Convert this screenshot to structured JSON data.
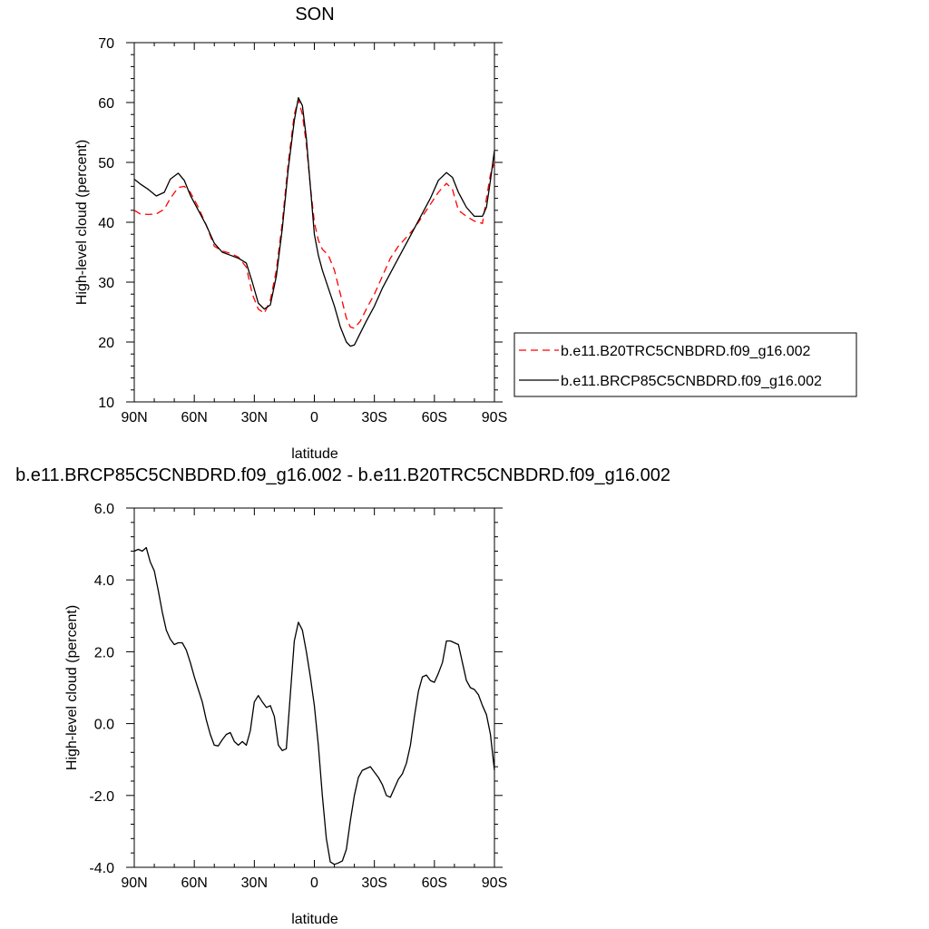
{
  "chart_data": [
    {
      "type": "line",
      "title": "SON",
      "xlabel": "latitude",
      "ylabel": "High-level cloud (percent)",
      "xlim": [
        90,
        -90
      ],
      "ylim": [
        10,
        70
      ],
      "x_ticks": [
        90,
        60,
        30,
        0,
        -30,
        -60,
        -90
      ],
      "x_tick_labels": [
        "90N",
        "60N",
        "30N",
        "0",
        "30S",
        "60S",
        "90S"
      ],
      "y_ticks": [
        10,
        20,
        30,
        40,
        50,
        60,
        70
      ],
      "y_tick_labels": [
        "10",
        "20",
        "30",
        "40",
        "50",
        "60",
        "70"
      ],
      "legend": {
        "position": "right"
      },
      "series": [
        {
          "name": "b.e11.B20TRC5CNBDRD.f09_g16.002",
          "color": "#ff0000",
          "dash": "dashed",
          "x": [
            90,
            87,
            83,
            79,
            75,
            72,
            68,
            65,
            62,
            58,
            54,
            50,
            46,
            42,
            38,
            34,
            31,
            28,
            25,
            22,
            19,
            16,
            13,
            10,
            8,
            6,
            4,
            2,
            0,
            -2,
            -4,
            -7,
            -10,
            -13,
            -16,
            -18,
            -20,
            -23,
            -26,
            -30,
            -34,
            -38,
            -42,
            -46,
            -50,
            -54,
            -58,
            -62,
            -66,
            -69,
            -72,
            -76,
            -80,
            -84,
            -86,
            -88,
            -90
          ],
          "values": [
            42,
            41.4,
            41.3,
            41.4,
            42.2,
            44,
            45.8,
            46,
            45,
            42.5,
            39.5,
            36,
            35.2,
            34.8,
            34.2,
            32.5,
            28,
            25.5,
            24.8,
            27,
            32,
            40,
            50,
            58,
            60.5,
            58,
            53,
            46,
            40,
            37,
            35.5,
            34.5,
            32,
            28,
            24,
            22.5,
            22.3,
            23.5,
            25.5,
            28,
            31,
            34,
            36,
            37.5,
            39,
            41,
            43,
            45,
            46.5,
            45.5,
            42,
            41,
            40.2,
            39.8,
            44,
            48,
            50
          ]
        },
        {
          "name": "b.e11.BRCP85C5CNBDRD.f09_g16.002",
          "color": "#000000",
          "dash": "solid",
          "x": [
            90,
            87,
            83,
            79,
            75,
            72,
            68,
            65,
            62,
            58,
            54,
            50,
            46,
            42,
            38,
            34,
            31,
            28,
            25,
            22,
            19,
            16,
            13,
            10,
            8,
            6,
            4,
            2,
            0,
            -2,
            -4,
            -7,
            -10,
            -13,
            -16,
            -18,
            -20,
            -23,
            -26,
            -30,
            -34,
            -38,
            -42,
            -46,
            -50,
            -54,
            -58,
            -62,
            -66,
            -69,
            -72,
            -76,
            -80,
            -84,
            -86,
            -88,
            -90
          ],
          "values": [
            47.2,
            46.4,
            45.5,
            44.4,
            45,
            47.2,
            48.2,
            47,
            44.5,
            42,
            39.5,
            36.5,
            35,
            34.5,
            34,
            33.2,
            30,
            26.5,
            25.5,
            26.2,
            31,
            39,
            49,
            57,
            60.8,
            59.5,
            54,
            46,
            38,
            34.5,
            32,
            29,
            26,
            22.5,
            20,
            19.3,
            19.5,
            21.5,
            23.5,
            26,
            29,
            31.5,
            34,
            36.5,
            39,
            41.5,
            44,
            47,
            48.3,
            47.5,
            45,
            42.5,
            41,
            41,
            42.5,
            47,
            52
          ]
        }
      ]
    },
    {
      "type": "line",
      "title": "b.e11.BRCP85C5CNBDRD.f09_g16.002 - b.e11.B20TRC5CNBDRD.f09_g16.002",
      "xlabel": "latitude",
      "ylabel": "High-level cloud (percent)",
      "xlim": [
        90,
        -90
      ],
      "ylim": [
        -4,
        6
      ],
      "x_ticks": [
        90,
        60,
        30,
        0,
        -30,
        -60,
        -90
      ],
      "x_tick_labels": [
        "90N",
        "60N",
        "30N",
        "0",
        "30S",
        "60S",
        "90S"
      ],
      "y_ticks": [
        -4,
        -2,
        0,
        2,
        4,
        6
      ],
      "y_tick_labels": [
        "-4.0",
        "-2.0",
        "0.0",
        "2.0",
        "4.0",
        "6.0"
      ],
      "series": [
        {
          "color": "#000000",
          "dash": "solid",
          "x": [
            90,
            88,
            86,
            84,
            82,
            80,
            78,
            76,
            74,
            72,
            70,
            68,
            66,
            64,
            62,
            60,
            58,
            56,
            54,
            52,
            50,
            48,
            46,
            44,
            42,
            40,
            38,
            36,
            34,
            32,
            30,
            28,
            26,
            24,
            22,
            20,
            18,
            16,
            14,
            12,
            10,
            8,
            6,
            4,
            2,
            0,
            -2,
            -4,
            -6,
            -8,
            -10,
            -12,
            -14,
            -16,
            -18,
            -20,
            -22,
            -24,
            -26,
            -28,
            -30,
            -32,
            -34,
            -36,
            -38,
            -40,
            -42,
            -44,
            -46,
            -48,
            -50,
            -52,
            -54,
            -56,
            -58,
            -60,
            -62,
            -64,
            -66,
            -68,
            -70,
            -72,
            -74,
            -76,
            -78,
            -80,
            -82,
            -84,
            -86,
            -88,
            -90
          ],
          "values": [
            4.8,
            4.85,
            4.8,
            4.9,
            4.5,
            4.25,
            3.7,
            3.1,
            2.6,
            2.35,
            2.2,
            2.25,
            2.25,
            2.05,
            1.7,
            1.3,
            0.95,
            0.6,
            0.1,
            -0.3,
            -0.6,
            -0.62,
            -0.45,
            -0.3,
            -0.25,
            -0.5,
            -0.6,
            -0.5,
            -0.6,
            -0.2,
            0.6,
            0.78,
            0.6,
            0.45,
            0.5,
            0.2,
            -0.6,
            -0.75,
            -0.7,
            0.8,
            2.3,
            2.82,
            2.6,
            2.0,
            1.3,
            0.5,
            -0.6,
            -2.0,
            -3.2,
            -3.85,
            -3.92,
            -3.88,
            -3.82,
            -3.5,
            -2.7,
            -2.0,
            -1.5,
            -1.3,
            -1.25,
            -1.2,
            -1.35,
            -1.5,
            -1.7,
            -2.0,
            -2.05,
            -1.8,
            -1.55,
            -1.4,
            -1.1,
            -0.6,
            0.2,
            0.9,
            1.3,
            1.35,
            1.2,
            1.15,
            1.4,
            1.7,
            2.3,
            2.3,
            2.25,
            2.2,
            1.7,
            1.2,
            1.0,
            0.95,
            0.8,
            0.5,
            0.25,
            -0.3,
            -1.3
          ]
        }
      ]
    }
  ]
}
